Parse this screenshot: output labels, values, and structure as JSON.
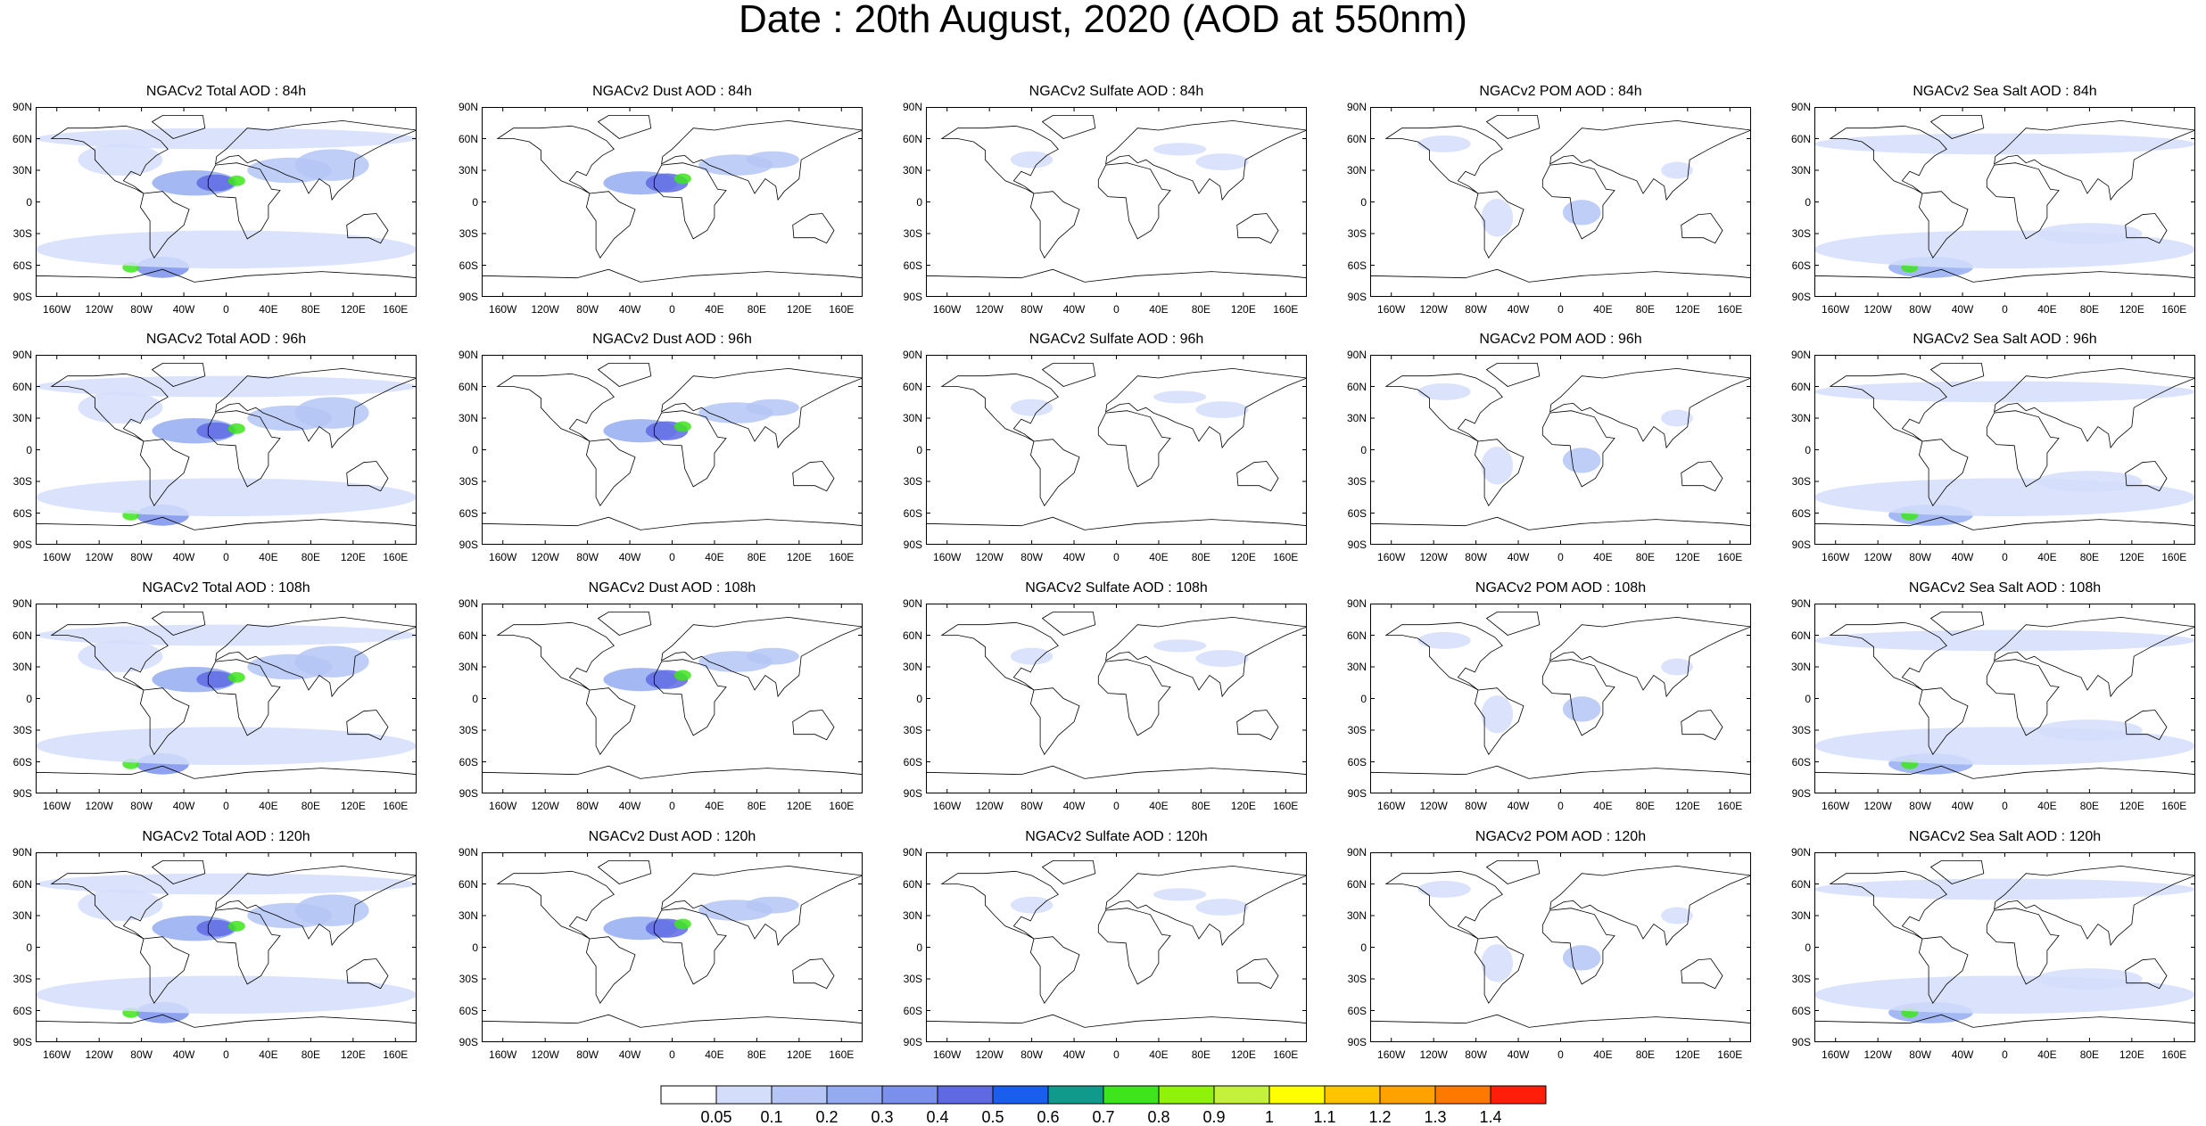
{
  "title": "Date : 20th August, 2020 (AOD at 550nm)",
  "latitude_ticks": [
    "90N",
    "60N",
    "30N",
    "0",
    "30S",
    "60S",
    "90S"
  ],
  "longitude_ticks": [
    "160W",
    "120W",
    "80W",
    "40W",
    "0",
    "40E",
    "80E",
    "120E",
    "160E"
  ],
  "species": [
    {
      "key": "total",
      "active": true
    },
    {
      "key": "dust",
      "active": true
    },
    {
      "key": "sulfate",
      "active": true
    },
    {
      "key": "pom",
      "active": true
    },
    {
      "key": "seasalt",
      "active": true
    }
  ],
  "panels": [
    [
      "NGACv2 Total AOD : 84h",
      "NGACv2 Dust AOD : 84h",
      "NGACv2 Sulfate AOD : 84h",
      "NGACv2 POM AOD : 84h",
      "NGACv2 Sea Salt AOD : 84h"
    ],
    [
      "NGACv2 Total AOD : 96h",
      "NGACv2 Dust AOD : 96h",
      "NGACv2 Sulfate AOD : 96h",
      "NGACv2 POM AOD : 96h",
      "NGACv2 Sea Salt AOD : 96h"
    ],
    [
      "NGACv2 Total AOD : 108h",
      "NGACv2 Dust AOD : 108h",
      "NGACv2 Sulfate AOD : 108h",
      "NGACv2 POM AOD : 108h",
      "NGACv2 Sea Salt AOD : 108h"
    ],
    [
      "NGACv2 Total AOD : 120h",
      "NGACv2 Dust AOD : 120h",
      "NGACv2 Sulfate AOD : 120h",
      "NGACv2 POM AOD : 120h",
      "NGACv2 Sea Salt  AOD : 120h"
    ]
  ],
  "colorbar": {
    "labels": [
      "0.05",
      "0.1",
      "0.2",
      "0.3",
      "0.4",
      "0.5",
      "0.6",
      "0.7",
      "0.8",
      "0.9",
      "1",
      "1.1",
      "1.2",
      "1.3",
      "1.4"
    ],
    "colors": [
      "#ffffff",
      "#d4defa",
      "#b4c5f6",
      "#94abf1",
      "#7a90ec",
      "#5f6ae2",
      "#1a5ef0",
      "#0f9a8c",
      "#3ee51c",
      "#8ef20a",
      "#c4f23c",
      "#ffff00",
      "#ffc300",
      "#ffa200",
      "#ff7800",
      "#ff1e0a"
    ]
  }
}
